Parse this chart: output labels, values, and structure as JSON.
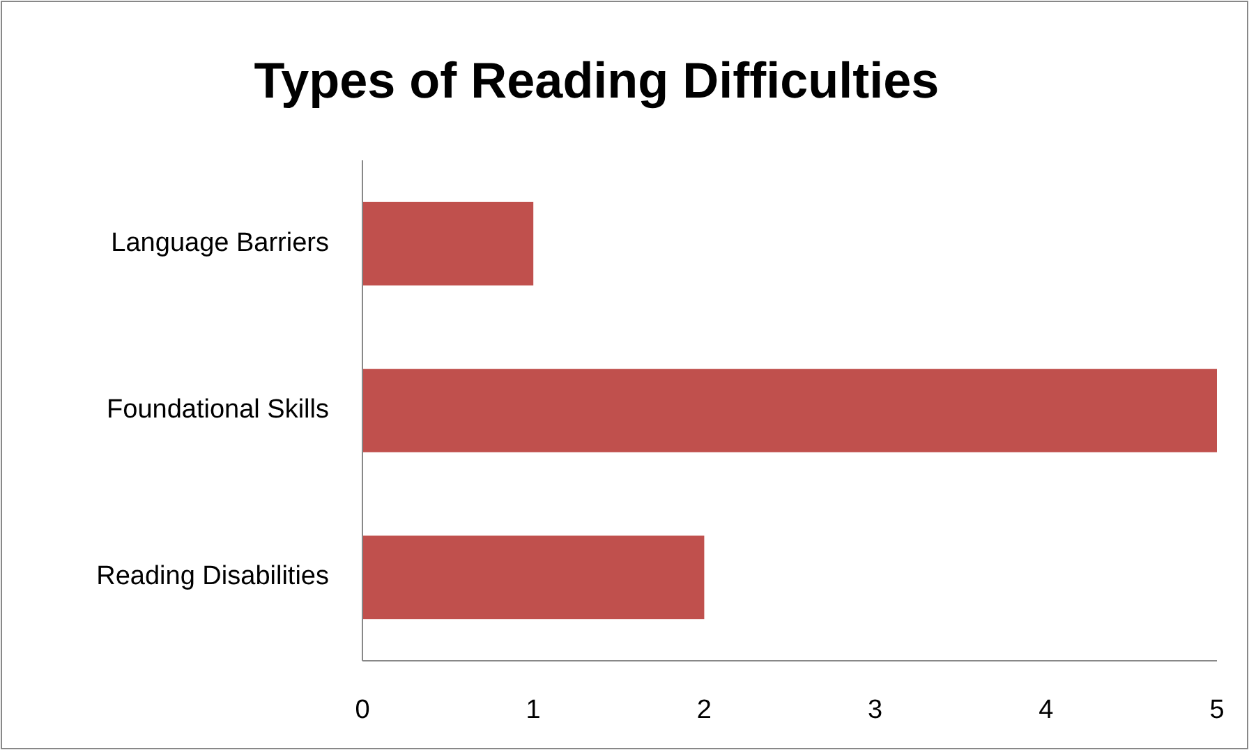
{
  "chart_data": {
    "type": "bar",
    "orientation": "horizontal",
    "title": "Types of Reading Difficulties",
    "categories": [
      "Language Barriers",
      "Foundational Skills",
      "Reading Disabilities"
    ],
    "values": [
      1,
      5,
      2
    ],
    "color": "#c0504d",
    "xlim": [
      0,
      5
    ],
    "xticks": [
      0,
      1,
      2,
      3,
      4,
      5
    ],
    "grid": false
  }
}
